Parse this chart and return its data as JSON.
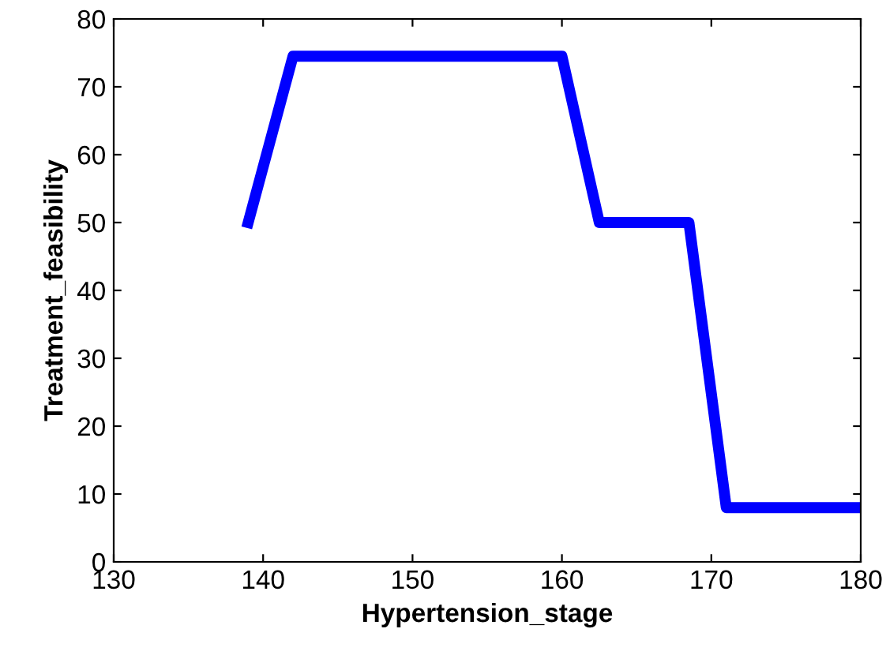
{
  "chart_data": {
    "type": "line",
    "xlabel": "Hypertension_stage",
    "ylabel": "Treatment_feasibility",
    "x": [
      139,
      142,
      160,
      162.5,
      168.5,
      171,
      180
    ],
    "series": [
      {
        "color": "#0000ff",
        "values": [
          50,
          74.5,
          74.5,
          50,
          50,
          8,
          8
        ]
      }
    ],
    "xlim": [
      130,
      180
    ],
    "xticks": [
      130,
      140,
      150,
      160,
      170,
      180
    ],
    "ylim": [
      0,
      80
    ],
    "yticks": [
      0,
      10,
      20,
      30,
      40,
      50,
      60,
      70,
      80
    ],
    "grid": false,
    "marker": "none",
    "line_style": "solid"
  }
}
